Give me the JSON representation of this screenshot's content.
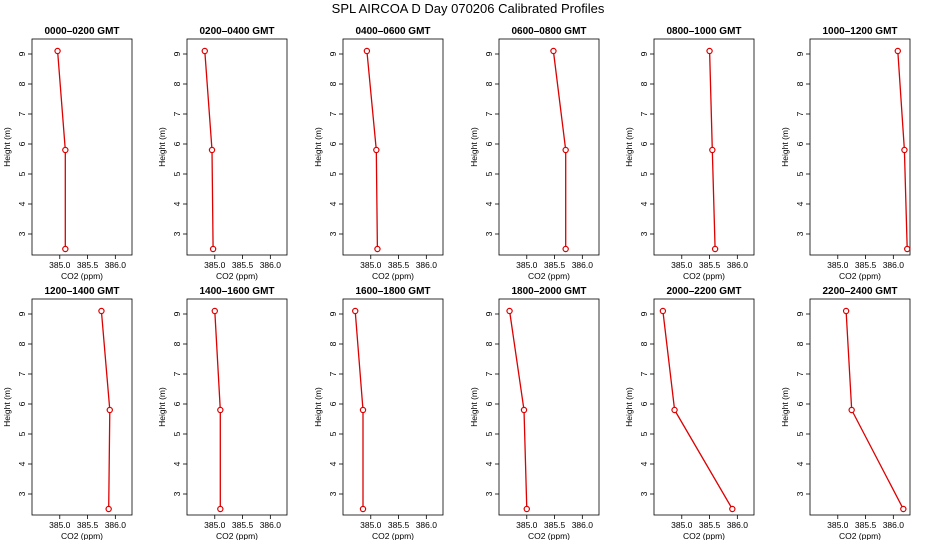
{
  "title": "SPL AIRCOA D  Day 070206  Calibrated Profiles",
  "chart_data": {
    "type": "line",
    "xlabel": "CO2 (ppm)",
    "ylabel": "Height (m)",
    "xlim": [
      384.5,
      386.3
    ],
    "ylim": [
      2.3,
      9.5
    ],
    "xticks": [
      "385.0",
      "385.5",
      "386.0"
    ],
    "yticks": [
      "3",
      "4",
      "5",
      "6",
      "7",
      "8",
      "9"
    ],
    "xtick_values": [
      385.0,
      385.5,
      386.0
    ],
    "ytick_values": [
      3,
      4,
      5,
      6,
      7,
      8,
      9
    ],
    "heights": [
      9.1,
      5.8,
      2.5
    ],
    "color": "#dd0000",
    "panels": [
      {
        "title": "0000–0200 GMT",
        "co2": [
          384.96,
          385.1,
          385.1
        ]
      },
      {
        "title": "0200–0400 GMT",
        "co2": [
          384.82,
          384.95,
          384.97
        ]
      },
      {
        "title": "0400–0600 GMT",
        "co2": [
          384.93,
          385.1,
          385.12
        ]
      },
      {
        "title": "0600–0800 GMT",
        "co2": [
          385.48,
          385.7,
          385.7
        ]
      },
      {
        "title": "0800–1000 GMT",
        "co2": [
          385.5,
          385.55,
          385.6
        ]
      },
      {
        "title": "1000–1200 GMT",
        "co2": [
          386.08,
          386.2,
          386.25
        ]
      },
      {
        "title": "1200–1400 GMT",
        "co2": [
          385.75,
          385.9,
          385.88
        ]
      },
      {
        "title": "1400–1600 GMT",
        "co2": [
          385.0,
          385.1,
          385.1
        ]
      },
      {
        "title": "1600–1800 GMT",
        "co2": [
          384.72,
          384.86,
          384.86
        ]
      },
      {
        "title": "1800–2000 GMT",
        "co2": [
          384.69,
          384.95,
          385.0
        ]
      },
      {
        "title": "2000–2200 GMT",
        "co2": [
          384.66,
          384.87,
          385.91
        ]
      },
      {
        "title": "2200–2400 GMT",
        "co2": [
          385.15,
          385.25,
          386.18
        ]
      }
    ]
  }
}
